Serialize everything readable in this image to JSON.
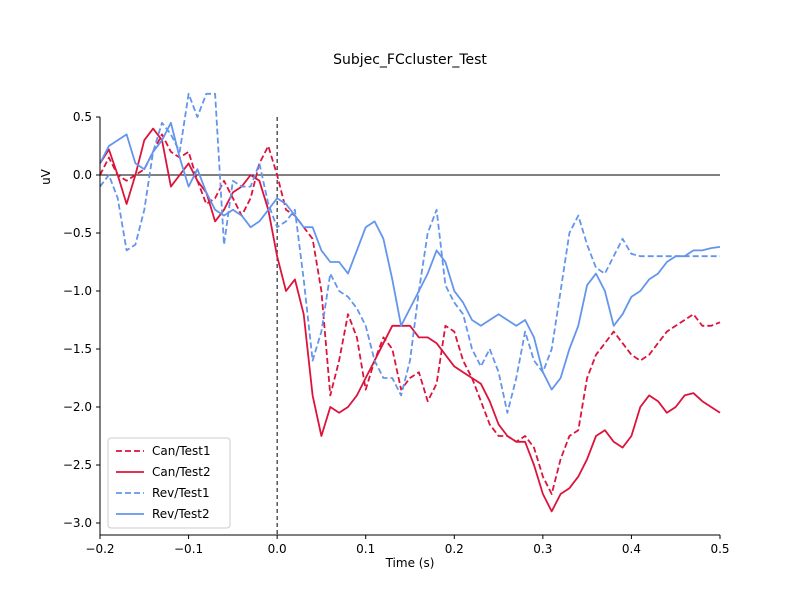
{
  "chart_data": {
    "type": "line",
    "title": "Subjec_FCcluster_Test",
    "xlabel": "Time (s)",
    "ylabel": "uV",
    "xlim": [
      -0.2,
      0.5
    ],
    "ylim": [
      -3.1,
      0.5
    ],
    "xticks": [
      -0.2,
      -0.1,
      0.0,
      0.1,
      0.2,
      0.3,
      0.4,
      0.5
    ],
    "xtick_labels": [
      "−0.2",
      "−0.1",
      "0.0",
      "0.1",
      "0.2",
      "0.3",
      "0.4",
      "0.5"
    ],
    "yticks": [
      0.5,
      0.0,
      -0.5,
      -1.0,
      -1.5,
      -2.0,
      -2.5,
      -3.0
    ],
    "ytick_labels": [
      "0.5",
      "0.0",
      "−0.5",
      "−1.0",
      "−1.5",
      "−2.0",
      "−2.5",
      "−3.0"
    ],
    "hline_y": 0,
    "vline_x": 0,
    "grid": false,
    "legend_position": "lower-left",
    "series": [
      {
        "name": "Can/Test1",
        "color": "#dc143c",
        "dash": true,
        "x": [
          -0.2,
          -0.19,
          -0.18,
          -0.17,
          -0.16,
          -0.15,
          -0.14,
          -0.13,
          -0.12,
          -0.11,
          -0.1,
          -0.09,
          -0.08,
          -0.07,
          -0.06,
          -0.05,
          -0.04,
          -0.03,
          -0.02,
          -0.01,
          0.0,
          0.01,
          0.02,
          0.03,
          0.04,
          0.05,
          0.06,
          0.07,
          0.08,
          0.09,
          0.1,
          0.11,
          0.12,
          0.13,
          0.14,
          0.15,
          0.16,
          0.17,
          0.18,
          0.19,
          0.2,
          0.21,
          0.22,
          0.23,
          0.24,
          0.25,
          0.26,
          0.27,
          0.28,
          0.29,
          0.3,
          0.31,
          0.32,
          0.33,
          0.34,
          0.35,
          0.36,
          0.37,
          0.38,
          0.39,
          0.4,
          0.41,
          0.42,
          0.43,
          0.44,
          0.45,
          0.46,
          0.47,
          0.48,
          0.49,
          0.5
        ],
        "y": [
          0.0,
          0.15,
          0.0,
          -0.05,
          0.0,
          0.05,
          0.2,
          0.35,
          0.2,
          0.15,
          0.2,
          -0.05,
          -0.25,
          -0.2,
          -0.05,
          -0.2,
          -0.35,
          -0.2,
          0.1,
          0.25,
          0.0,
          -0.3,
          -0.35,
          -0.45,
          -0.55,
          -1.0,
          -1.9,
          -1.6,
          -1.2,
          -1.4,
          -1.85,
          -1.6,
          -1.4,
          -1.5,
          -1.85,
          -1.75,
          -1.7,
          -1.95,
          -1.8,
          -1.3,
          -1.35,
          -1.6,
          -1.75,
          -1.95,
          -2.15,
          -2.25,
          -2.25,
          -2.3,
          -2.25,
          -2.35,
          -2.6,
          -2.75,
          -2.45,
          -2.25,
          -2.2,
          -1.75,
          -1.55,
          -1.45,
          -1.35,
          -1.45,
          -1.55,
          -1.6,
          -1.55,
          -1.45,
          -1.35,
          -1.3,
          -1.25,
          -1.2,
          -1.3,
          -1.3,
          -1.27
        ],
        "y_override": null
      },
      {
        "name": "Can/Test2",
        "color": "#dc143c",
        "dash": false,
        "x": [
          -0.2,
          -0.19,
          -0.18,
          -0.17,
          -0.16,
          -0.15,
          -0.14,
          -0.13,
          -0.12,
          -0.11,
          -0.1,
          -0.09,
          -0.08,
          -0.07,
          -0.06,
          -0.05,
          -0.04,
          -0.03,
          -0.02,
          -0.01,
          0.0,
          0.01,
          0.02,
          0.03,
          0.04,
          0.05,
          0.06,
          0.07,
          0.08,
          0.09,
          0.1,
          0.11,
          0.12,
          0.13,
          0.14,
          0.15,
          0.16,
          0.17,
          0.18,
          0.19,
          0.2,
          0.21,
          0.22,
          0.23,
          0.24,
          0.25,
          0.26,
          0.27,
          0.28,
          0.29,
          0.3,
          0.31,
          0.32,
          0.33,
          0.34,
          0.35,
          0.36,
          0.37,
          0.38,
          0.39,
          0.4,
          0.41,
          0.42,
          0.43,
          0.44,
          0.45,
          0.46,
          0.47,
          0.48,
          0.49,
          0.5
        ],
        "y": [
          0.1,
          0.22,
          0.0,
          -0.25,
          0.0,
          0.3,
          0.4,
          0.3,
          -0.1,
          0.0,
          0.1,
          -0.05,
          -0.15,
          -0.4,
          -0.3,
          -0.15,
          -0.1,
          0.0,
          -0.05,
          -0.3,
          -0.7,
          -1.0,
          -0.9,
          -1.2,
          -1.9,
          -2.25,
          -2.0,
          -2.05,
          -2.0,
          -1.9,
          -1.75,
          -1.6,
          -1.45,
          -1.3,
          -1.3,
          -1.3,
          -1.4,
          -1.4,
          -1.45,
          -1.55,
          -1.65,
          -1.7,
          -1.75,
          -1.8,
          -1.95,
          -2.15,
          -2.25,
          -2.3,
          -2.3,
          -2.5,
          -2.75,
          -2.9,
          -2.75,
          -2.7,
          -2.6,
          -2.45,
          -2.25,
          -2.2,
          -2.3,
          -2.35,
          -2.25,
          -2.0,
          -1.9,
          -1.95,
          -2.05,
          -2.0,
          -1.9,
          -1.88,
          -1.95,
          -2.0,
          -2.05
        ],
        "y_override": null
      },
      {
        "name": "Rev/Test1",
        "color": "#6495ed",
        "dash": true,
        "x": [
          -0.2,
          -0.19,
          -0.18,
          -0.17,
          -0.16,
          -0.15,
          -0.14,
          -0.13,
          -0.12,
          -0.11,
          -0.1,
          -0.09,
          -0.08,
          -0.07,
          -0.06,
          -0.05,
          -0.04,
          -0.03,
          -0.02,
          -0.01,
          0.0,
          0.01,
          0.02,
          0.03,
          0.04,
          0.05,
          0.06,
          0.07,
          0.08,
          0.09,
          0.1,
          0.11,
          0.12,
          0.13,
          0.14,
          0.15,
          0.16,
          0.17,
          0.18,
          0.19,
          0.2,
          0.21,
          0.22,
          0.23,
          0.24,
          0.25,
          0.26,
          0.27,
          0.28,
          0.29,
          0.3,
          0.31,
          0.32,
          0.33,
          0.34,
          0.35,
          0.36,
          0.37,
          0.38,
          0.39,
          0.4,
          0.41,
          0.42,
          0.43,
          0.44,
          0.45,
          0.46,
          0.47,
          0.48,
          0.49,
          0.5
        ],
        "y": [
          -0.1,
          0.0,
          -0.2,
          -0.65,
          -0.6,
          -0.3,
          0.2,
          0.45,
          0.35,
          0.2,
          0.7,
          0.5,
          0.7,
          0.7,
          -0.6,
          -0.05,
          -0.1,
          -0.1,
          0.1,
          -0.25,
          -0.45,
          -0.4,
          -0.3,
          -0.9,
          -1.6,
          -1.35,
          -0.85,
          -1.0,
          -1.05,
          -1.15,
          -1.3,
          -1.6,
          -1.75,
          -1.75,
          -1.9,
          -1.6,
          -1.0,
          -0.5,
          -0.3,
          -0.95,
          -1.1,
          -1.2,
          -1.5,
          -1.65,
          -1.5,
          -1.7,
          -2.05,
          -1.75,
          -1.35,
          -1.6,
          -1.7,
          -1.5,
          -1.0,
          -0.5,
          -0.35,
          -0.6,
          -0.8,
          -0.85,
          -0.7,
          -0.55,
          -0.68,
          -0.7,
          -0.7,
          -0.7,
          -0.7,
          -0.7,
          -0.7,
          -0.7,
          -0.7,
          -0.7,
          -0.7
        ],
        "y_override": null
      },
      {
        "name": "Rev/Test2",
        "color": "#6495ed",
        "dash": false,
        "x": [
          -0.2,
          -0.19,
          -0.18,
          -0.17,
          -0.16,
          -0.15,
          -0.14,
          -0.13,
          -0.12,
          -0.11,
          -0.1,
          -0.09,
          -0.08,
          -0.07,
          -0.06,
          -0.05,
          -0.04,
          -0.03,
          -0.02,
          -0.01,
          0.0,
          0.01,
          0.02,
          0.03,
          0.04,
          0.05,
          0.06,
          0.07,
          0.08,
          0.09,
          0.1,
          0.11,
          0.12,
          0.13,
          0.14,
          0.15,
          0.16,
          0.17,
          0.18,
          0.19,
          0.2,
          0.21,
          0.22,
          0.23,
          0.24,
          0.25,
          0.26,
          0.27,
          0.28,
          0.29,
          0.3,
          0.31,
          0.32,
          0.33,
          0.34,
          0.35,
          0.36,
          0.37,
          0.38,
          0.39,
          0.4,
          0.41,
          0.42,
          0.43,
          0.44,
          0.45,
          0.46,
          0.47,
          0.48,
          0.49,
          0.5
        ],
        "y": [
          0.1,
          0.25,
          0.3,
          0.35,
          0.1,
          0.05,
          0.2,
          0.3,
          0.45,
          0.15,
          -0.1,
          0.05,
          -0.15,
          -0.3,
          -0.35,
          -0.3,
          -0.35,
          -0.45,
          -0.4,
          -0.3,
          -0.2,
          -0.25,
          -0.35,
          -0.45,
          -0.45,
          -0.65,
          -0.75,
          -0.75,
          -0.85,
          -0.65,
          -0.45,
          -0.4,
          -0.55,
          -0.9,
          -1.3,
          -1.15,
          -1.0,
          -0.85,
          -0.65,
          -0.75,
          -1.0,
          -1.1,
          -1.25,
          -1.3,
          -1.25,
          -1.2,
          -1.25,
          -1.3,
          -1.25,
          -1.4,
          -1.7,
          -1.85,
          -1.75,
          -1.5,
          -1.3,
          -0.95,
          -0.85,
          -1.0,
          -1.3,
          -1.2,
          -1.05,
          -1.0,
          -0.9,
          -0.85,
          -0.75,
          -0.7,
          -0.7,
          -0.65,
          -0.65,
          -0.63,
          -0.62
        ],
        "y_override": null
      }
    ]
  }
}
